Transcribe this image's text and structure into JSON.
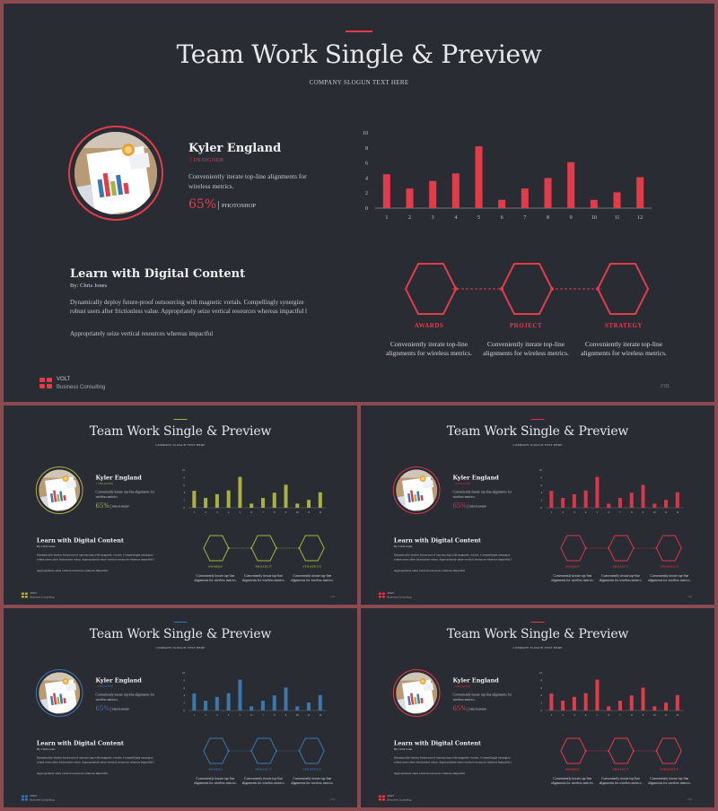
{
  "slide": {
    "title": "Team Work Single & Preview",
    "slogan": "COMPANY SLOGUN TEXT HERE",
    "profile": {
      "name": "Kyler England",
      "role": "DESIGNER",
      "description": "Conveniently iterate top-line alignments for wireless metrics.",
      "percent": "65%",
      "percent_label": "PHOTOSHOP"
    },
    "learn": {
      "title": "Learn with Digital Content",
      "by": "By: Chris Jones",
      "body": "Dynamically deploy future-proof outsourcing with magnetic vortals. Compellingly synergize robust users after frictionless value. Appropriately seize vertical resources whereas impactful l",
      "extra": "Appropriately seize vertical resources whereas impactful"
    },
    "steps": [
      {
        "label": "AWARDS",
        "description": "Conveniently iterate top-line alignments for wireless metrics."
      },
      {
        "label": "PROJECT",
        "description": "Conveniently iterate top-line alignments for wireless metrics."
      },
      {
        "label": "STRATEGY",
        "description": "Conveniently iterate top-line alignments for wireless metrics."
      }
    ],
    "logo": {
      "title": "VOLT",
      "subtitle": "Business Consulting"
    },
    "page_number": "// 01"
  },
  "themes": {
    "main": "#e23c4b",
    "thumb_1": "#a9b240",
    "thumb_2": "#d8364a",
    "thumb_3": "#3b78b0",
    "thumb_4": "#e23c4b"
  },
  "chart_data": {
    "type": "bar",
    "categories": [
      "1",
      "2",
      "3",
      "4",
      "5",
      "6",
      "7",
      "8",
      "9",
      "10",
      "11",
      "12"
    ],
    "values": [
      4.5,
      2.6,
      3.6,
      4.6,
      8.2,
      1.1,
      2.6,
      4.0,
      6.1,
      1.1,
      2.1,
      4.1
    ],
    "ylim": [
      0,
      10
    ],
    "y_ticks": [
      0,
      2,
      4,
      6,
      8,
      10
    ],
    "grid": false,
    "xlabel": "",
    "ylabel": ""
  }
}
